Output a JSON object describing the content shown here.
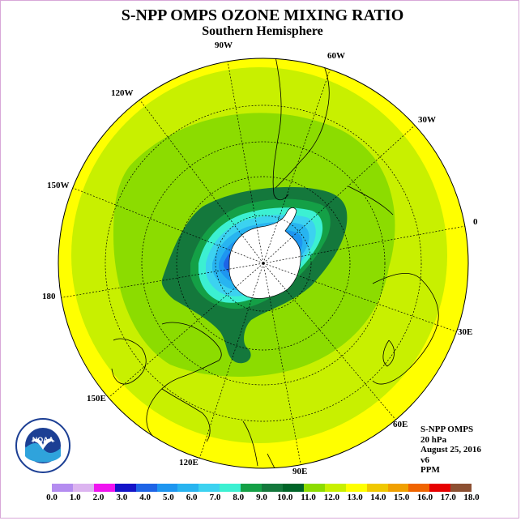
{
  "header": {
    "title": "S-NPP OMPS OZONE MIXING RATIO",
    "subtitle": "Southern Hemisphere"
  },
  "map": {
    "projection": "south polar stereographic",
    "longitude_labels": [
      {
        "text": "90W"
      },
      {
        "text": "60W"
      },
      {
        "text": "120W"
      },
      {
        "text": "30W"
      },
      {
        "text": "150W"
      },
      {
        "text": "0"
      },
      {
        "text": "180"
      },
      {
        "text": "30E"
      },
      {
        "text": "150E"
      },
      {
        "text": "60E"
      },
      {
        "text": "120E"
      },
      {
        "text": "90E"
      }
    ],
    "land_color": "#ffffff",
    "coastline_color": "#000000"
  },
  "info_block": {
    "lines": [
      "S-NPP OMPS",
      "20 hPa",
      "August 25, 2016",
      "v6",
      "PPM"
    ]
  },
  "colorbar": {
    "ticks": [
      "0.0",
      "1.0",
      "2.0",
      "3.0",
      "4.0",
      "5.0",
      "6.0",
      "7.0",
      "8.0",
      "9.0",
      "10.0",
      "11.0",
      "12.0",
      "13.0",
      "14.0",
      "15.0",
      "16.0",
      "17.0",
      "18.0"
    ],
    "colors": [
      "#b48cf0",
      "#dcb4f0",
      "#f014f0",
      "#1414c8",
      "#1e64e6",
      "#1e96f0",
      "#28b4f0",
      "#3cd2f0",
      "#3cf0d2",
      "#14a046",
      "#14783c",
      "#006428",
      "#8cdc00",
      "#c8f000",
      "#ffff00",
      "#f0c800",
      "#f0a000",
      "#f06400",
      "#e60000",
      "#8c5032"
    ]
  },
  "logo": {
    "text": "NOAA"
  }
}
